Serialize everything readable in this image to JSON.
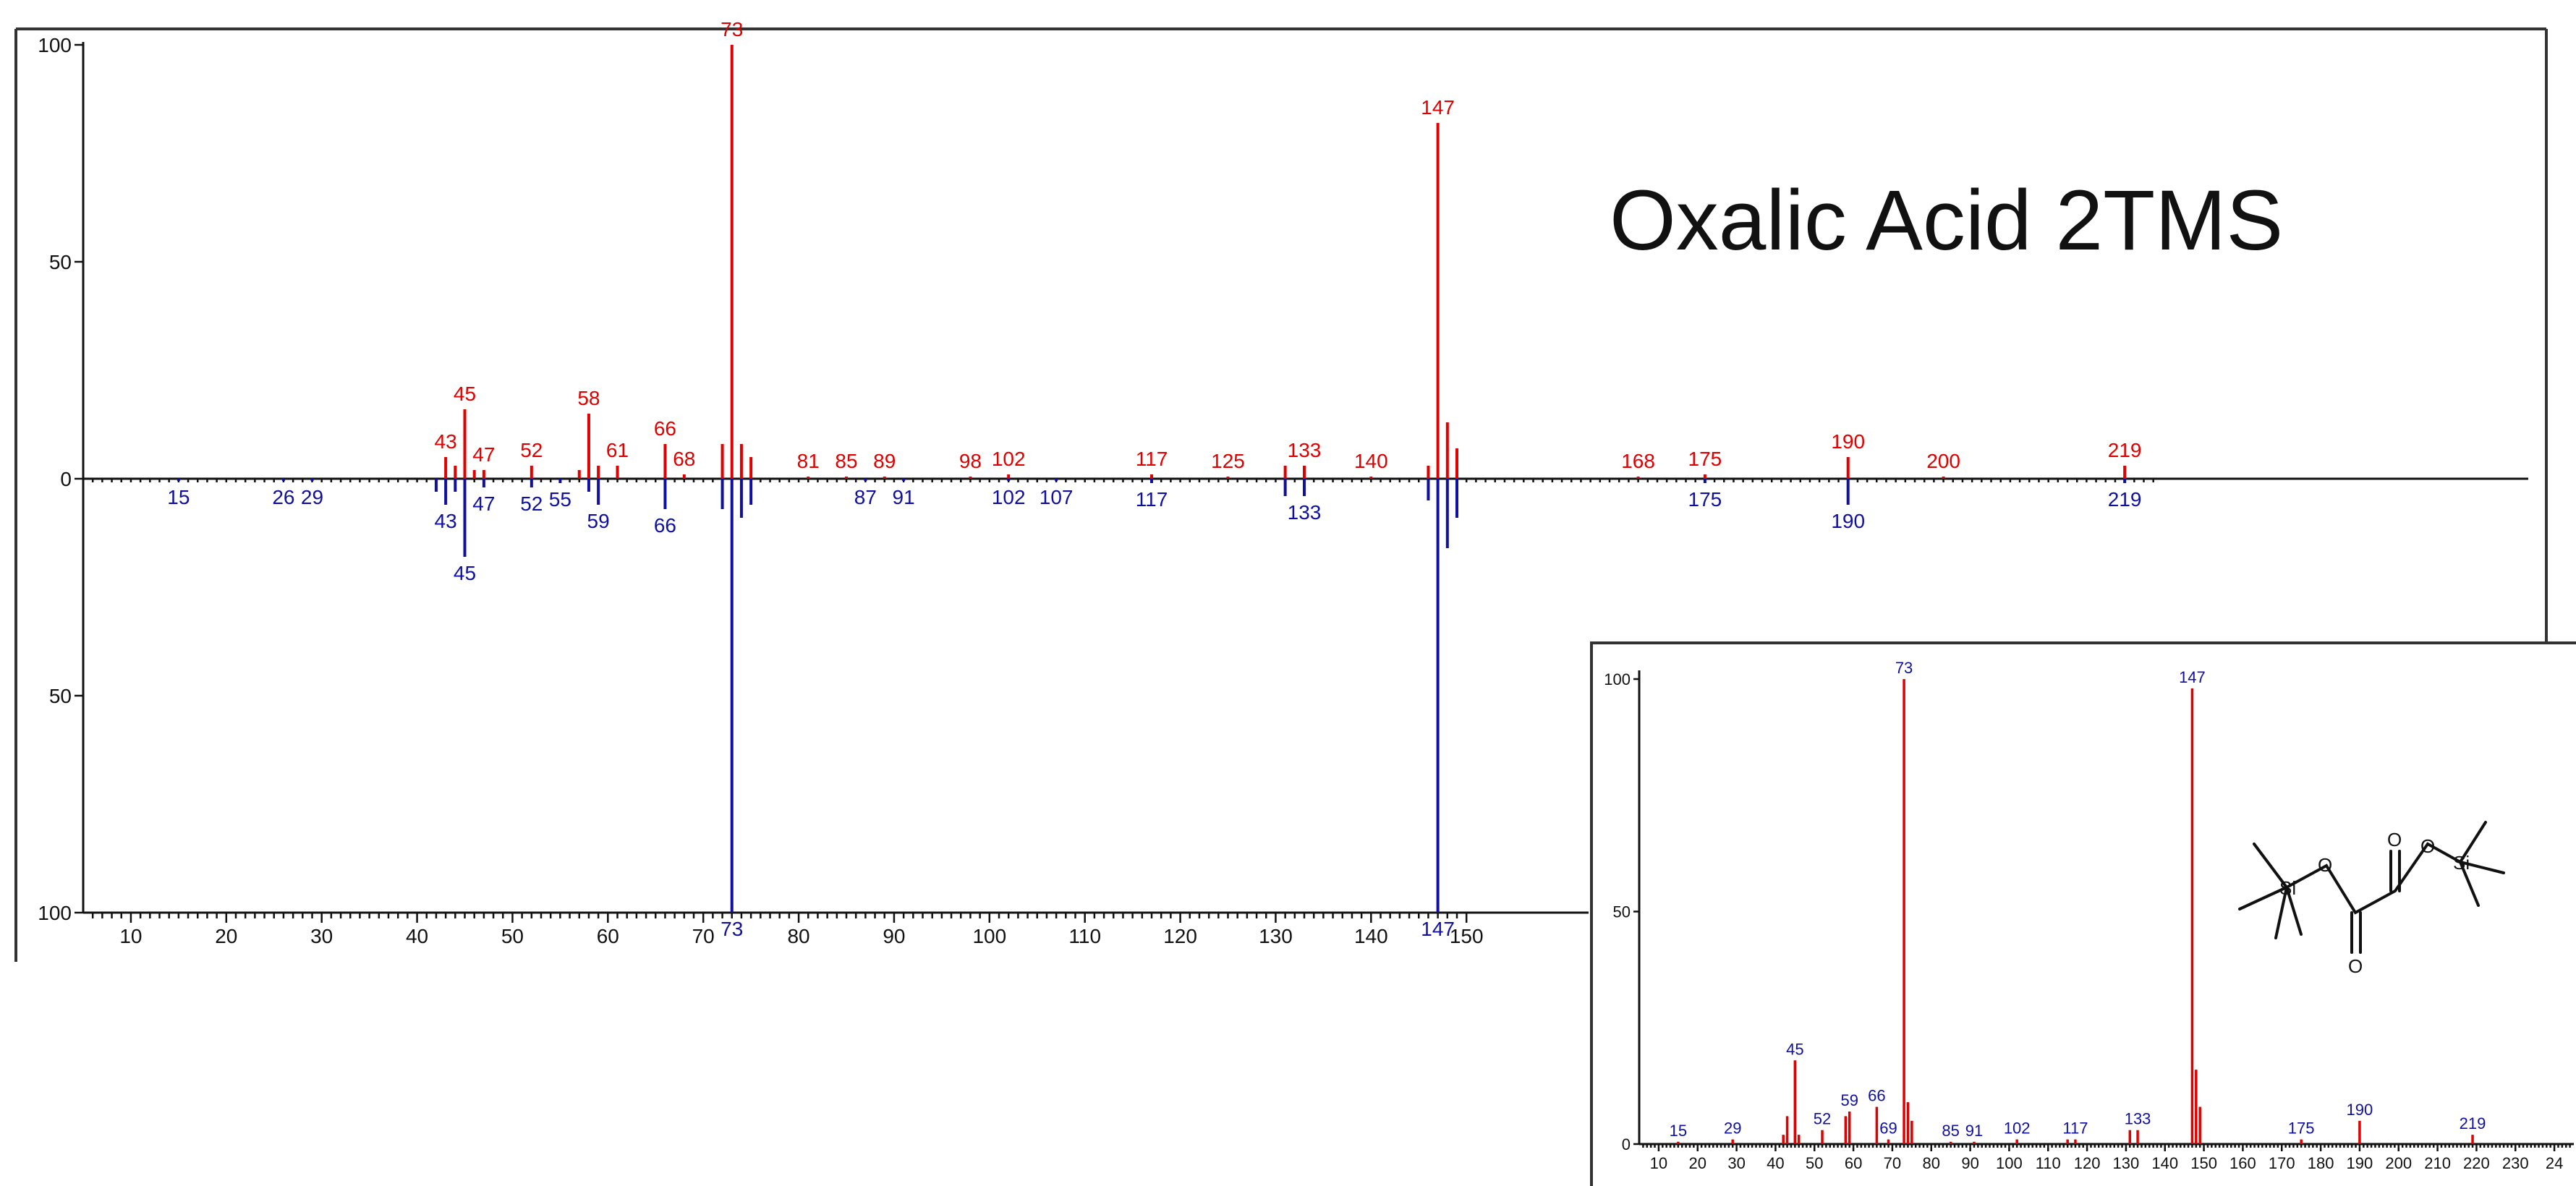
{
  "colors": {
    "upper": "#e00000",
    "lower": "#1010a0",
    "inset_label": "#1010a0",
    "inset_bar": "#e00000"
  },
  "chart_data": [
    {
      "type": "bar",
      "name": "mirror-spectrum",
      "title": "Oxalic Acid 2TMS",
      "xlim": [
        5,
        152
      ],
      "ylim": [
        -100,
        100
      ],
      "x_ticks": [
        10,
        20,
        30,
        40,
        50,
        60,
        70,
        80,
        90,
        100,
        110,
        120,
        130,
        140,
        150
      ],
      "y_ticks": [
        {
          "value": 100,
          "label": "100"
        },
        {
          "value": 50,
          "label": "50"
        },
        {
          "value": 0,
          "label": "0"
        },
        {
          "value": -50,
          "label": "50"
        },
        {
          "value": -100,
          "label": "100"
        }
      ],
      "upper_series": [
        {
          "x": 43,
          "y": 5,
          "label": "43"
        },
        {
          "x": 44,
          "y": 3
        },
        {
          "x": 45,
          "y": 16,
          "label": "45"
        },
        {
          "x": 46,
          "y": 2
        },
        {
          "x": 47,
          "y": 2,
          "label": "47"
        },
        {
          "x": 52,
          "y": 3,
          "label": "52"
        },
        {
          "x": 57,
          "y": 2
        },
        {
          "x": 58,
          "y": 15,
          "label": "58"
        },
        {
          "x": 59,
          "y": 3
        },
        {
          "x": 61,
          "y": 3,
          "label": "61"
        },
        {
          "x": 66,
          "y": 8,
          "label": "66"
        },
        {
          "x": 68,
          "y": 1,
          "label": "68"
        },
        {
          "x": 72,
          "y": 8
        },
        {
          "x": 73,
          "y": 100,
          "label": "73"
        },
        {
          "x": 74,
          "y": 8
        },
        {
          "x": 75,
          "y": 5
        },
        {
          "x": 81,
          "y": 0.5,
          "label": "81"
        },
        {
          "x": 85,
          "y": 0.5,
          "label": "85"
        },
        {
          "x": 89,
          "y": 0.5,
          "label": "89"
        },
        {
          "x": 98,
          "y": 0.5,
          "label": "98"
        },
        {
          "x": 102,
          "y": 1,
          "label": "102"
        },
        {
          "x": 117,
          "y": 1,
          "label": "117"
        },
        {
          "x": 125,
          "y": 0.5,
          "label": "125"
        },
        {
          "x": 131,
          "y": 3
        },
        {
          "x": 133,
          "y": 3,
          "label": "133"
        },
        {
          "x": 140,
          "y": 0.5,
          "label": "140"
        },
        {
          "x": 146,
          "y": 3
        },
        {
          "x": 147,
          "y": 82,
          "label": "147"
        },
        {
          "x": 148,
          "y": 13
        },
        {
          "x": 149,
          "y": 7
        },
        {
          "x": 168,
          "y": 0.5,
          "label": "168"
        },
        {
          "x": 175,
          "y": 1,
          "label": "175"
        },
        {
          "x": 190,
          "y": 5,
          "label": "190"
        },
        {
          "x": 200,
          "y": 0.5,
          "label": "200"
        },
        {
          "x": 219,
          "y": 3,
          "label": "219"
        }
      ],
      "lower_series": [
        {
          "x": 15,
          "y": 0.5,
          "label": "15"
        },
        {
          "x": 26,
          "y": 0.5,
          "label": "26"
        },
        {
          "x": 29,
          "y": 0.5,
          "label": "29"
        },
        {
          "x": 42,
          "y": 3
        },
        {
          "x": 43,
          "y": 6,
          "label": "43"
        },
        {
          "x": 44,
          "y": 3
        },
        {
          "x": 45,
          "y": 18,
          "label": "45"
        },
        {
          "x": 47,
          "y": 2,
          "label": "47"
        },
        {
          "x": 52,
          "y": 2,
          "label": "52"
        },
        {
          "x": 55,
          "y": 1,
          "label": "55"
        },
        {
          "x": 58,
          "y": 3
        },
        {
          "x": 59,
          "y": 6,
          "label": "59"
        },
        {
          "x": 66,
          "y": 7,
          "label": "66"
        },
        {
          "x": 72,
          "y": 7
        },
        {
          "x": 73,
          "y": 100,
          "label": "73"
        },
        {
          "x": 74,
          "y": 9
        },
        {
          "x": 75,
          "y": 6
        },
        {
          "x": 87,
          "y": 0.5,
          "label": "87"
        },
        {
          "x": 91,
          "y": 0.5,
          "label": "91"
        },
        {
          "x": 102,
          "y": 0.5,
          "label": "102"
        },
        {
          "x": 107,
          "y": 0.5,
          "label": "107"
        },
        {
          "x": 117,
          "y": 1,
          "label": "117"
        },
        {
          "x": 131,
          "y": 4
        },
        {
          "x": 133,
          "y": 4,
          "label": "133"
        },
        {
          "x": 146,
          "y": 5
        },
        {
          "x": 147,
          "y": 100,
          "label": "147"
        },
        {
          "x": 148,
          "y": 16
        },
        {
          "x": 149,
          "y": 9
        },
        {
          "x": 175,
          "y": 1,
          "label": "175"
        },
        {
          "x": 190,
          "y": 6,
          "label": "190"
        },
        {
          "x": 219,
          "y": 1,
          "label": "219"
        }
      ]
    },
    {
      "type": "bar",
      "name": "reference-spectrum-inset",
      "xlim": [
        5,
        245
      ],
      "ylim": [
        0,
        100
      ],
      "x_tick_labels": [
        "10",
        "20",
        "30",
        "40",
        "50",
        "60",
        "70",
        "80",
        "90",
        "100",
        "110",
        "120",
        "130",
        "140",
        "150",
        "160",
        "170",
        "180",
        "190",
        "200",
        "210",
        "220",
        "230",
        "24"
      ],
      "y_ticks": [
        {
          "value": 100,
          "label": "100"
        },
        {
          "value": 50,
          "label": "50"
        },
        {
          "value": 0,
          "label": "0"
        }
      ],
      "series": [
        {
          "x": 15,
          "y": 0.5,
          "label": "15"
        },
        {
          "x": 29,
          "y": 1,
          "label": "29"
        },
        {
          "x": 42,
          "y": 2
        },
        {
          "x": 43,
          "y": 6
        },
        {
          "x": 45,
          "y": 18,
          "label": "45"
        },
        {
          "x": 46,
          "y": 2
        },
        {
          "x": 52,
          "y": 3,
          "label": "52"
        },
        {
          "x": 58,
          "y": 6
        },
        {
          "x": 59,
          "y": 7,
          "label": "59"
        },
        {
          "x": 66,
          "y": 8,
          "label": "66"
        },
        {
          "x": 69,
          "y": 1,
          "label": "69"
        },
        {
          "x": 73,
          "y": 100,
          "label": "73"
        },
        {
          "x": 74,
          "y": 9
        },
        {
          "x": 75,
          "y": 5
        },
        {
          "x": 85,
          "y": 0.5,
          "label": "85"
        },
        {
          "x": 91,
          "y": 0.5,
          "label": "91"
        },
        {
          "x": 102,
          "y": 1,
          "label": "102"
        },
        {
          "x": 115,
          "y": 1
        },
        {
          "x": 117,
          "y": 1,
          "label": "117"
        },
        {
          "x": 131,
          "y": 3
        },
        {
          "x": 133,
          "y": 3,
          "label": "133"
        },
        {
          "x": 147,
          "y": 98,
          "label": "147"
        },
        {
          "x": 148,
          "y": 16
        },
        {
          "x": 149,
          "y": 8
        },
        {
          "x": 175,
          "y": 1,
          "label": "175"
        },
        {
          "x": 190,
          "y": 5,
          "label": "190"
        },
        {
          "x": 219,
          "y": 2,
          "label": "219"
        }
      ]
    }
  ],
  "molecule": {
    "atoms": [
      "O",
      "O",
      "O",
      "O",
      "Si",
      "Si"
    ]
  }
}
